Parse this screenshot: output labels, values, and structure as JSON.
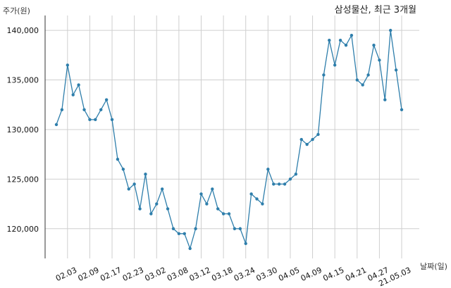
{
  "chart_data": {
    "type": "line",
    "title": "삼성물산, 최근 3개월",
    "ylabel": "주가(원)",
    "xlabel": "날짜(일)",
    "ylim": [
      117000,
      141500
    ],
    "yticks": [
      120000,
      125000,
      130000,
      135000,
      140000
    ],
    "ytick_labels": [
      "120,000",
      "125,000",
      "130,000",
      "135,000",
      "140,000"
    ],
    "xtick_labels": [
      "02.03",
      "02.09",
      "02.17",
      "02.23",
      "03.02",
      "03.08",
      "03.12",
      "03.18",
      "03.24",
      "03.30",
      "04.05",
      "04.09",
      "04.15",
      "04.21",
      "04.27",
      "21.05.03"
    ],
    "xtick_index": [
      2,
      6,
      10,
      14,
      18,
      22,
      26,
      30,
      34,
      38,
      42,
      46,
      50,
      54,
      58,
      62
    ],
    "grid": true,
    "color": "#2e7eab",
    "values": [
      130500,
      132000,
      136500,
      133500,
      134500,
      132000,
      131000,
      131000,
      132000,
      133000,
      131000,
      127000,
      126000,
      124000,
      124500,
      122000,
      125500,
      121500,
      122500,
      124000,
      122000,
      120000,
      119500,
      119500,
      118000,
      120000,
      123500,
      122500,
      124000,
      122000,
      121500,
      121500,
      120000,
      120000,
      118500,
      123500,
      123000,
      122500,
      126000,
      124500,
      124500,
      124500,
      125000,
      125500,
      129000,
      128500,
      129000,
      129500,
      135500,
      139000,
      136500,
      139000,
      138500,
      139500,
      135000,
      134500,
      135500,
      138500,
      137000,
      133000,
      140000,
      136000,
      132000
    ]
  }
}
